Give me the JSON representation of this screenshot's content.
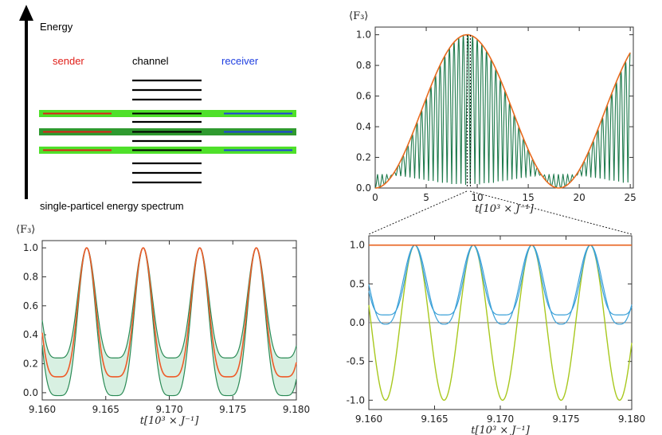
{
  "diagram": {
    "axis_label": "Energy",
    "caption": "single-particel energy spectrum",
    "sender_label": "sender",
    "channel_label": "channel",
    "receiver_label": "receiver",
    "colors": {
      "sender": "#e0201a",
      "channel": "#000000",
      "receiver": "#1f3fe0",
      "band": "#4fe02a",
      "band_dark": "#2f9a2f"
    }
  },
  "chart_data": [
    {
      "id": "top-right",
      "type": "line",
      "ylabel": "⟨F₃⟩",
      "xlabel": "t[10³ × J⁻¹]",
      "xlim": [
        0,
        25.3
      ],
      "ylim": [
        0,
        1.05
      ],
      "xticks": [
        0,
        5,
        10,
        15,
        20,
        25
      ],
      "yticks": [
        0.0,
        0.2,
        0.4,
        0.6,
        0.8,
        1.0
      ],
      "xtick_labels": [
        "0",
        "5",
        "10",
        "15",
        "20",
        "25"
      ],
      "ytick_labels": [
        "0.0",
        "0.2",
        "0.4",
        "0.6",
        "0.8",
        "1.0"
      ],
      "marker_x": 9.17,
      "series": [
        {
          "kind": "fast-oscillation",
          "color": "#1e7a4c",
          "period": 0.4545,
          "envelope_period": 18.0
        },
        {
          "kind": "envelope",
          "color": "#e86a1e",
          "formula": "sin²(πt/18)"
        }
      ]
    },
    {
      "id": "bottom-left",
      "type": "area",
      "ylabel": "⟨F₃⟩",
      "xlabel": "t[10³ × J⁻¹]",
      "xlim": [
        9.16,
        9.18
      ],
      "ylim": [
        -0.05,
        1.05
      ],
      "xticks": [
        9.16,
        9.165,
        9.17,
        9.175,
        9.18
      ],
      "yticks": [
        0.0,
        0.2,
        0.4,
        0.6,
        0.8,
        1.0
      ],
      "xtick_labels": [
        "9.160",
        "9.165",
        "9.170",
        "9.175",
        "9.180"
      ],
      "ytick_labels": [
        "0.0",
        "0.2",
        "0.4",
        "0.6",
        "0.8",
        "1.0"
      ],
      "period": 0.00445,
      "peak_x": 9.1635,
      "series": [
        {
          "name": "upper",
          "color": "#2a8a55",
          "minimum": 0.24,
          "peak": 1.0
        },
        {
          "name": "mean",
          "color": "#ee5a28",
          "minimum": 0.11,
          "peak": 1.0
        },
        {
          "name": "lower",
          "color": "#2a8a55",
          "minimum": -0.02,
          "peak": 1.0
        }
      ],
      "band_fill": "#d8f0e2"
    },
    {
      "id": "bottom-right",
      "type": "line",
      "xlabel": "t[10³ × J⁻¹]",
      "xlim": [
        9.16,
        9.18
      ],
      "ylim": [
        -1.12,
        1.12
      ],
      "xticks": [
        9.16,
        9.165,
        9.17,
        9.175,
        9.18
      ],
      "yticks": [
        -1.0,
        -0.5,
        0.0,
        0.5,
        1.0
      ],
      "xtick_labels": [
        "9.160",
        "9.165",
        "9.170",
        "9.175",
        "9.180"
      ],
      "ytick_labels": [
        "-1.0",
        "-0.5",
        "0.0",
        "0.5",
        "1.0"
      ],
      "period": 0.00445,
      "peak_x": 9.1635,
      "series": [
        {
          "name": "constant",
          "color": "#e8621e",
          "value": 1.0
        },
        {
          "name": "zero",
          "color": "#777777",
          "value": 0.0
        },
        {
          "name": "cosine",
          "color": "#a8c81e",
          "minimum": -1.0,
          "peak": 1.0
        },
        {
          "name": "blue-a",
          "color": "#3aa0d8",
          "minimum": 0.1,
          "peak": 1.0
        },
        {
          "name": "blue-b",
          "color": "#3aa0d8",
          "minimum": -0.02,
          "peak": 1.0
        }
      ]
    }
  ]
}
